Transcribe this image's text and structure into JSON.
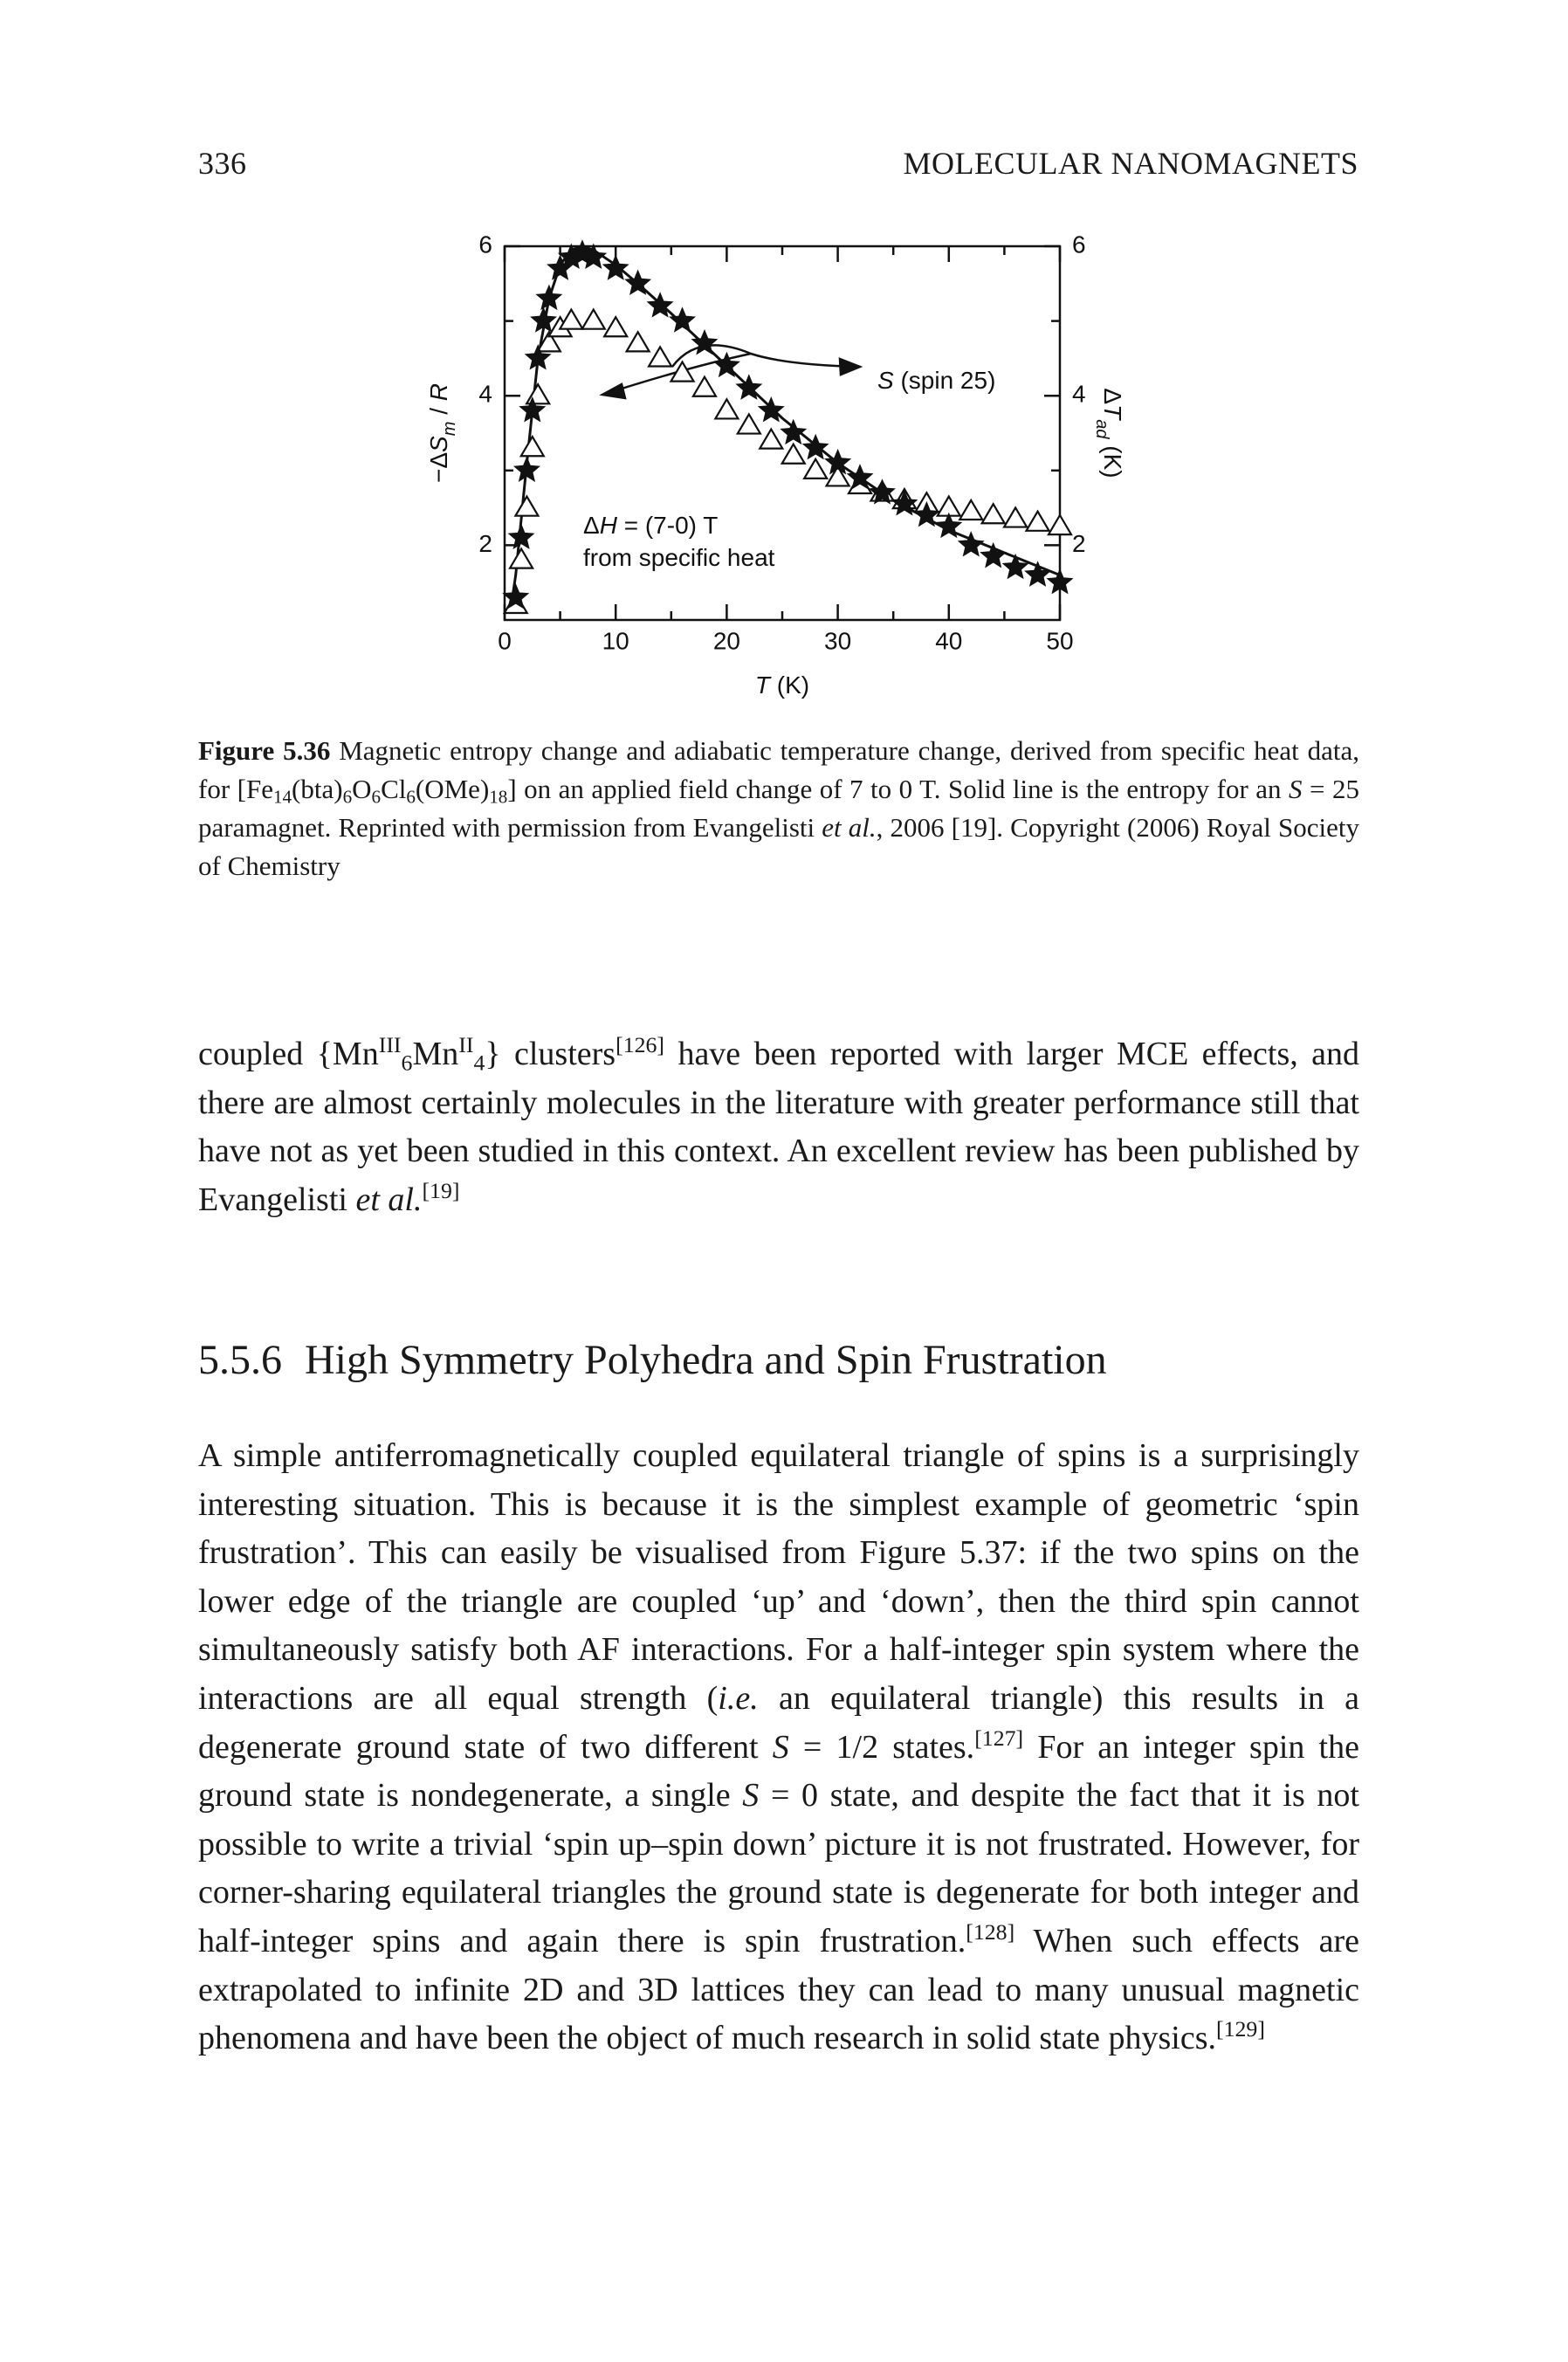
{
  "header": {
    "page_number": "336",
    "running_title": "MOLECULAR NANOMAGNETS"
  },
  "figure": {
    "chart_data": {
      "type": "scatter",
      "ylabel": [
        "−Δ",
        {
          "t": "S",
          "s": "i"
        },
        {
          "t": "m",
          "s": "sub"
        },
        " / ",
        {
          "t": "R",
          "s": "i"
        }
      ],
      "y2label": [
        "Δ",
        {
          "t": "T",
          "s": "i"
        },
        {
          "t": "ad",
          "s": "sub"
        },
        " (K)"
      ],
      "xlabel": [
        {
          "t": "T",
          "s": "i"
        },
        " (K)"
      ],
      "annotations": [
        [
          {
            "t": "S",
            "s": "i"
          },
          " (spin 25)"
        ],
        [
          "Δ",
          {
            "t": "H",
            "s": "i"
          },
          " = (7-0) T"
        ],
        [
          "from specific heat"
        ]
      ],
      "xlim": [
        0,
        50
      ],
      "xticks": [
        0,
        10,
        20,
        30,
        40,
        50
      ],
      "xminorticks": [
        5,
        15,
        25,
        35,
        45
      ],
      "ylim": [
        1,
        6
      ],
      "yticks": [
        2,
        4,
        6
      ],
      "yminorticks": [
        3,
        5
      ],
      "y2lim": [
        1,
        6
      ],
      "y2ticks": [
        2,
        4,
        6
      ],
      "series": [
        {
          "marker": "line",
          "color": "#111111",
          "x": [
            0.5,
            1,
            2,
            3,
            4,
            5,
            6,
            7,
            8,
            10,
            12,
            15,
            20,
            25,
            30,
            35,
            40,
            45,
            50
          ],
          "values": [
            1.1,
            1.6,
            3.1,
            4.5,
            5.3,
            5.75,
            5.95,
            6.0,
            5.95,
            5.75,
            5.5,
            5.1,
            4.4,
            3.7,
            3.1,
            2.6,
            2.2,
            1.9,
            1.6
          ]
        },
        {
          "marker": "triangle",
          "color": "#111111",
          "x": [
            1,
            1.5,
            2,
            2.5,
            3,
            4,
            5,
            6,
            8,
            10,
            12,
            14,
            16,
            18,
            20,
            22,
            24,
            26,
            28,
            30,
            32,
            34,
            36,
            38,
            40,
            42,
            44,
            46,
            48,
            50
          ],
          "values": [
            1.2,
            1.8,
            2.5,
            3.3,
            4.0,
            4.7,
            4.9,
            5.0,
            5.0,
            4.9,
            4.7,
            4.5,
            4.3,
            4.1,
            3.8,
            3.6,
            3.4,
            3.2,
            3.0,
            2.9,
            2.8,
            2.7,
            2.6,
            2.55,
            2.5,
            2.45,
            2.4,
            2.35,
            2.3,
            2.25
          ]
        },
        {
          "marker": "star",
          "color": "#111111",
          "x": [
            1,
            1.5,
            2,
            2.5,
            3,
            3.5,
            4,
            5,
            6,
            7,
            8,
            10,
            12,
            14,
            16,
            18,
            20,
            22,
            24,
            26,
            28,
            30,
            32,
            34,
            36,
            38,
            40,
            42,
            44,
            46,
            48,
            50
          ],
          "values": [
            1.3,
            2.1,
            3.0,
            3.8,
            4.5,
            5.0,
            5.3,
            5.7,
            5.85,
            5.9,
            5.85,
            5.7,
            5.5,
            5.2,
            5.0,
            4.7,
            4.4,
            4.1,
            3.8,
            3.5,
            3.3,
            3.1,
            2.9,
            2.7,
            2.55,
            2.4,
            2.25,
            2.0,
            1.85,
            1.7,
            1.6,
            1.5
          ]
        }
      ]
    },
    "caption": [
      {
        "t": "Figure 5.36",
        "s": "b"
      },
      "  Magnetic entropy change and adiabatic temperature change, derived from specific heat data, for [Fe",
      {
        "t": "14",
        "s": "sub"
      },
      "(bta)",
      {
        "t": "6",
        "s": "sub"
      },
      "O",
      {
        "t": "6",
        "s": "sub"
      },
      "Cl",
      {
        "t": "6",
        "s": "sub"
      },
      "(OMe)",
      {
        "t": "18",
        "s": "sub"
      },
      "] on an applied field change of 7 to 0 T. Solid line is the entropy for an ",
      {
        "t": "S",
        "s": "i"
      },
      " = 25 paramagnet. Reprinted with permission from Evangelisti ",
      {
        "t": "et al.",
        "s": "i"
      },
      ", 2006 [19]. Copyright (2006) Royal Society of Chemistry"
    ]
  },
  "paragraphs": [
    [
      "coupled {Mn",
      {
        "t": "III",
        "s": "sup"
      },
      {
        "t": "6",
        "s": "sub"
      },
      "Mn",
      {
        "t": "II",
        "s": "sup"
      },
      {
        "t": "4",
        "s": "sub"
      },
      "} clusters",
      {
        "t": "[126]",
        "s": "sup"
      },
      " have been reported with larger MCE effects, and there are almost certainly molecules in the literature with greater performance still that have not as yet been studied in this context. An excellent review has been published by Evangelisti ",
      {
        "t": "et al.",
        "s": "i"
      },
      {
        "t": "[19]",
        "s": "sup"
      }
    ],
    [
      "A simple antiferromagnetically coupled equilateral triangle of spins is a surprisingly interesting situation. This is because it is the simplest example of geometric ‘spin frustration’. This can easily be visualised from Figure 5.37: if the two spins on the lower edge of the triangle are coupled ‘up’ and ‘down’, then the third spin cannot simultaneously satisfy both AF interactions. For a half-integer spin system where the interactions are all equal strength (",
      {
        "t": "i.e.",
        "s": "i"
      },
      " an equilateral triangle) this results in a degenerate ground state of two different ",
      {
        "t": "S",
        "s": "i"
      },
      " = 1/2 states.",
      {
        "t": "[127]",
        "s": "sup"
      },
      " For an integer spin the ground state is nondegenerate, a single ",
      {
        "t": "S",
        "s": "i"
      },
      " = 0 state, and despite the fact that it is not possible to write a trivial ‘spin up–spin down’ picture it is not frustrated. However, for corner-sharing equilateral triangles the ground state is degenerate for both integer and half-integer spins and again there is spin frustration.",
      {
        "t": "[128]",
        "s": "sup"
      },
      " When such effects are extrapolated to infinite 2D and 3D lattices they can lead to many unusual magnetic phenomena and have been the object of much research in solid state physics.",
      {
        "t": "[129]",
        "s": "sup"
      }
    ]
  ],
  "section": {
    "number": "5.5.6",
    "title": "High Symmetry Polyhedra and Spin Frustration"
  }
}
